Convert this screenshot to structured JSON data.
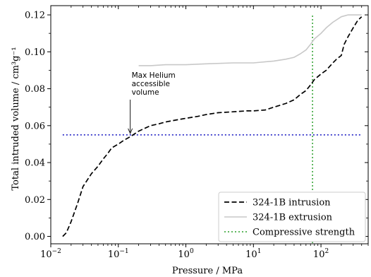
{
  "chart_data": {
    "type": "line",
    "title": "",
    "xlabel": "Pressure / MPa",
    "ylabel": "Total intruded volume / cm³g⁻¹",
    "xscale": "log",
    "xlim": [
      0.01,
      500
    ],
    "ylim": [
      -0.004,
      0.125
    ],
    "x_ticks": [
      {
        "value": 0.01,
        "base": "10",
        "exp": "−2"
      },
      {
        "value": 0.1,
        "base": "10",
        "exp": "−1"
      },
      {
        "value": 1,
        "base": "10",
        "exp": "0"
      },
      {
        "value": 10,
        "base": "10",
        "exp": "1"
      },
      {
        "value": 100,
        "base": "10",
        "exp": "2"
      }
    ],
    "y_ticks": [
      {
        "value": 0.0,
        "label": "0.00"
      },
      {
        "value": 0.02,
        "label": "0.02"
      },
      {
        "value": 0.04,
        "label": "0.04"
      },
      {
        "value": 0.06,
        "label": "0.06"
      },
      {
        "value": 0.08,
        "label": "0.08"
      },
      {
        "value": 0.1,
        "label": "0.10"
      },
      {
        "value": 0.12,
        "label": "0.12"
      }
    ],
    "series": [
      {
        "name": "324-1B intrusion",
        "color": "#000000",
        "style": "dashed",
        "x": [
          0.015,
          0.017,
          0.02,
          0.025,
          0.03,
          0.04,
          0.05,
          0.06,
          0.07,
          0.08,
          0.1,
          0.12,
          0.15,
          0.2,
          0.3,
          0.4,
          0.5,
          0.7,
          1.0,
          1.5,
          2,
          3,
          5,
          8,
          10,
          15,
          20,
          30,
          40,
          50,
          60,
          70,
          80,
          100,
          120,
          150,
          170,
          200,
          220,
          250,
          300,
          350,
          400
        ],
        "y": [
          0.0,
          0.002,
          0.008,
          0.018,
          0.027,
          0.034,
          0.038,
          0.042,
          0.045,
          0.048,
          0.05,
          0.052,
          0.054,
          0.057,
          0.06,
          0.061,
          0.062,
          0.063,
          0.064,
          0.065,
          0.066,
          0.067,
          0.0675,
          0.068,
          0.068,
          0.0685,
          0.07,
          0.072,
          0.074,
          0.077,
          0.079,
          0.082,
          0.085,
          0.088,
          0.09,
          0.094,
          0.096,
          0.098,
          0.104,
          0.108,
          0.113,
          0.117,
          0.119
        ]
      },
      {
        "name": "324-1B extrusion",
        "color": "#c8c8c8",
        "style": "solid",
        "x": [
          0.2,
          0.3,
          0.5,
          1,
          2,
          5,
          10,
          20,
          30,
          40,
          50,
          60,
          70,
          80,
          100,
          120,
          150,
          200,
          250,
          300,
          400
        ],
        "y": [
          0.0925,
          0.0925,
          0.093,
          0.093,
          0.0935,
          0.094,
          0.094,
          0.095,
          0.096,
          0.097,
          0.099,
          0.101,
          0.104,
          0.107,
          0.11,
          0.113,
          0.116,
          0.119,
          0.12,
          0.12,
          0.12
        ]
      }
    ],
    "reference_lines": [
      {
        "name": "Compressive strength",
        "orientation": "vertical",
        "x": 75,
        "color": "#2ca02c",
        "style": "dotted"
      },
      {
        "orientation": "horizontal",
        "y": 0.055,
        "color": "#1010c0",
        "style": "dotted"
      }
    ],
    "annotation": {
      "lines": [
        "Max Helium",
        "accessible",
        "volume"
      ],
      "point_x": 0.15,
      "point_y": 0.055
    },
    "legend_position": "bottom-right",
    "legend": [
      {
        "label": "324-1B intrusion",
        "color": "#000000",
        "style": "dashed"
      },
      {
        "label": "324-1B extrusion",
        "color": "#c8c8c8",
        "style": "solid"
      },
      {
        "label": "Compressive strength",
        "color": "#2ca02c",
        "style": "dotted"
      }
    ]
  }
}
